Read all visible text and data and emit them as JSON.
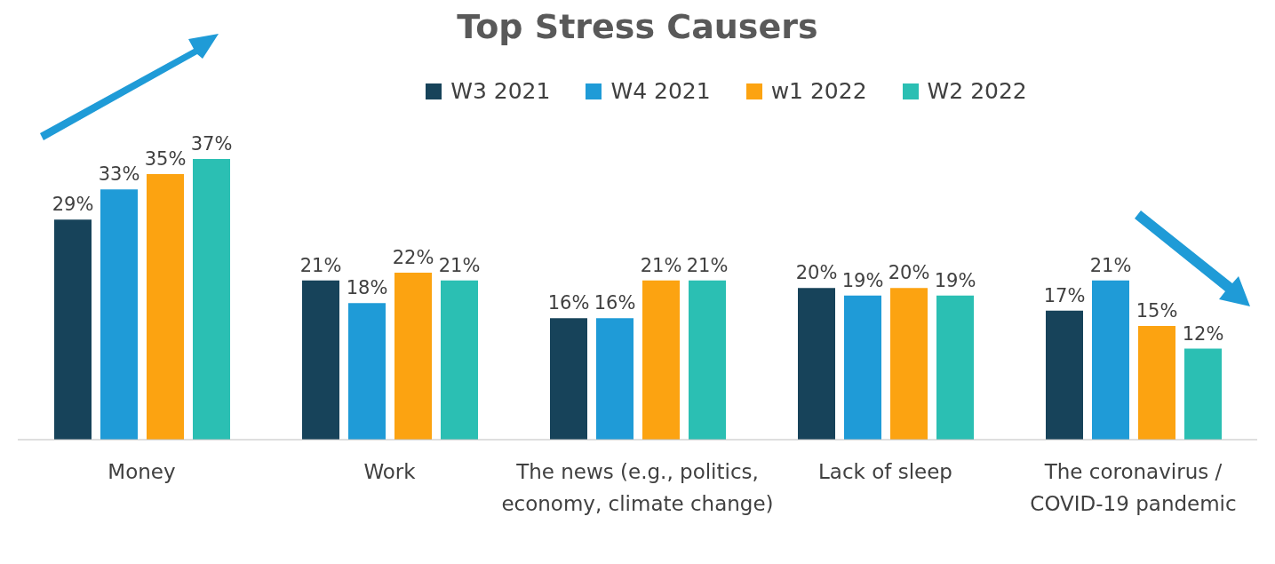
{
  "chart_data": {
    "type": "bar",
    "title": "Top Stress Causers",
    "categories": [
      "Money",
      "Work",
      "The news (e.g., politics, economy, climate change)",
      "Lack of sleep",
      "The coronavirus / COVID-19 pandemic"
    ],
    "series": [
      {
        "name": "W3 2021",
        "color": "#17435a",
        "values": [
          29,
          21,
          16,
          20,
          17
        ],
        "value_labels": [
          "29%",
          "21%",
          "16%",
          "20%",
          "17%"
        ]
      },
      {
        "name": "W4 2021",
        "color": "#1f9bd7",
        "values": [
          33,
          18,
          16,
          19,
          21
        ],
        "value_labels": [
          "33%",
          "18%",
          "16%",
          "19%",
          "21%"
        ]
      },
      {
        "name": "w1 2022",
        "color": "#fca311",
        "values": [
          35,
          22,
          21,
          20,
          15
        ],
        "value_labels": [
          "35%",
          "22%",
          "21%",
          "20%",
          "15%"
        ]
      },
      {
        "name": "W2 2022",
        "color": "#2bbfb3",
        "values": [
          37,
          21,
          21,
          19,
          12
        ],
        "value_labels": [
          "37%",
          "21%",
          "21%",
          "19%",
          "12%"
        ]
      }
    ],
    "legend": "top",
    "grid": false
  }
}
